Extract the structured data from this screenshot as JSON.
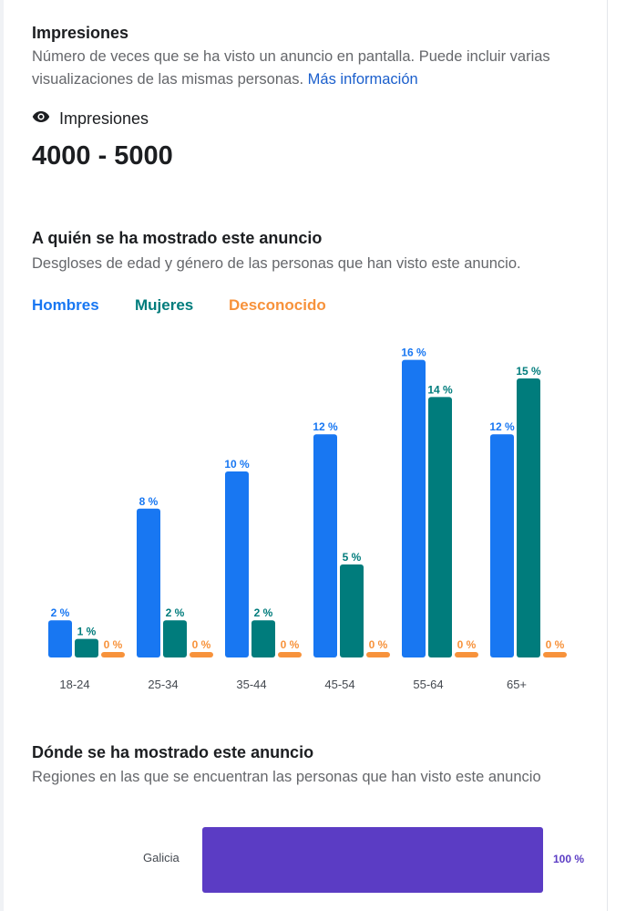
{
  "impressions": {
    "title": "Impresiones",
    "description": "Número de veces que se ha visto un anuncio en pantalla. Puede incluir varias visualizaciones de las mismas personas.",
    "more_info_link": "Más información",
    "metric_label": "Impresiones",
    "metric_icon": "eye-icon",
    "value": "4000 - 5000"
  },
  "audience": {
    "title": "A quién se ha mostrado este anuncio",
    "description": "Desgloses de edad y género de las personas que han visto este anuncio.",
    "legend": [
      "Hombres",
      "Mujeres",
      "Desconocido"
    ]
  },
  "chart_data": {
    "type": "bar",
    "categories": [
      "18-24",
      "25-34",
      "35-44",
      "45-54",
      "55-64",
      "65+"
    ],
    "series": [
      {
        "name": "Hombres",
        "color": "#1877f2",
        "values": [
          2,
          8,
          10,
          12,
          16,
          12
        ]
      },
      {
        "name": "Mujeres",
        "color": "#007c7c",
        "values": [
          1,
          2,
          2,
          5,
          14,
          15
        ]
      },
      {
        "name": "Desconocido",
        "color": "#f7923b",
        "values": [
          0,
          0,
          0,
          0,
          0,
          0
        ]
      }
    ],
    "value_suffix": " %",
    "ylim": [
      0,
      16
    ],
    "grid": false,
    "legend_placement": "top-left"
  },
  "regions": {
    "title": "Dónde se ha mostrado este anuncio",
    "description": "Regiones en las que se encuentran las personas que han visto este anuncio",
    "items": [
      {
        "name": "Galicia",
        "percent_label": "100 %",
        "value": 100,
        "color": "#5b3cc4"
      }
    ]
  }
}
